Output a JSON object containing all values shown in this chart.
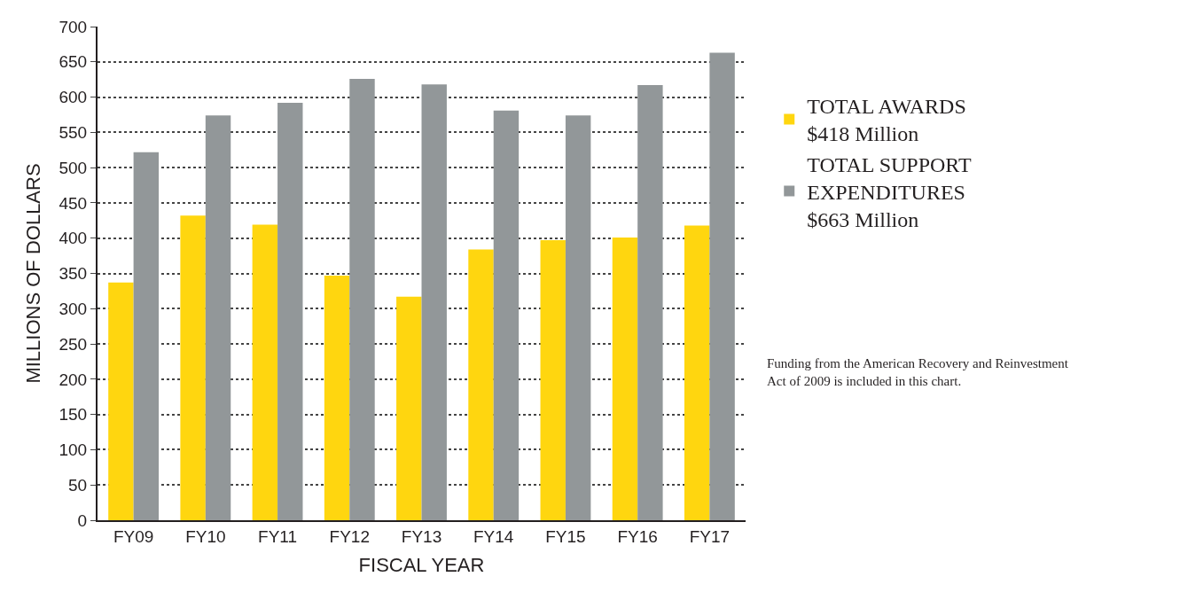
{
  "chart_data": {
    "type": "bar",
    "xlabel": "FISCAL YEAR",
    "ylabel": "MILLIONS OF DOLLARS",
    "categories": [
      "FY09",
      "FY10",
      "FY11",
      "FY12",
      "FY13",
      "FY14",
      "FY15",
      "FY16",
      "FY17"
    ],
    "series": [
      {
        "name": "TOTAL AWARDS\n$418 Million",
        "color": "#ffd60f",
        "values": [
          337,
          432,
          419,
          347,
          317,
          384,
          397,
          401,
          418
        ]
      },
      {
        "name": "TOTAL SUPPORT\nEXPENDITURES\n$663 Million",
        "color": "#929799",
        "values": [
          522,
          574,
          592,
          626,
          618,
          581,
          574,
          617,
          663
        ]
      }
    ],
    "ylim": [
      0,
      700
    ],
    "yticks": [
      0,
      50,
      100,
      150,
      200,
      250,
      300,
      350,
      400,
      450,
      500,
      550,
      600,
      650,
      700
    ],
    "grid": "y",
    "legend": "right",
    "annotations": [
      "Funding from the American Recovery and Reinvestment\nAct of 2009 is included in this chart."
    ]
  }
}
